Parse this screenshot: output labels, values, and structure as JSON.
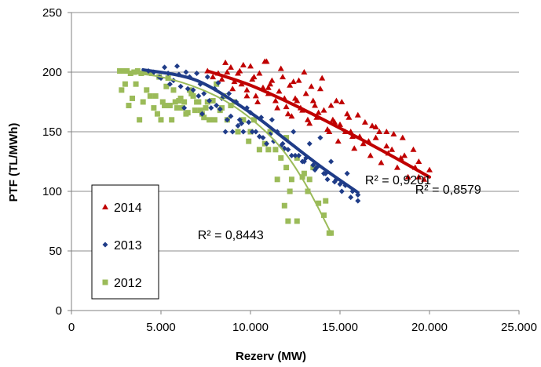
{
  "chart_data": {
    "type": "scatter",
    "xlabel": "Rezerv (MW)",
    "ylabel": "PTF (TL/MWh)",
    "xlim": [
      0,
      25000
    ],
    "ylim": [
      0,
      250
    ],
    "x_ticks": [
      0,
      5000,
      10000,
      15000,
      20000,
      25000
    ],
    "x_tick_labels": [
      "0",
      "5.000",
      "10.000",
      "15.000",
      "20.000",
      "25.000"
    ],
    "y_ticks": [
      0,
      50,
      100,
      150,
      200,
      250
    ],
    "y_tick_labels": [
      "0",
      "50",
      "100",
      "150",
      "200",
      "250"
    ],
    "grid": "horizontal",
    "legend_placement": "bottom-left",
    "series": [
      {
        "name": "2014",
        "color": "#c00000",
        "marker": "triangle",
        "x": [
          7600,
          7900,
          8200,
          8400,
          8700,
          8900,
          9100,
          9300,
          9500,
          9600,
          9800,
          10000,
          10100,
          10300,
          10500,
          10700,
          10900,
          11000,
          11200,
          11400,
          11600,
          11800,
          12000,
          12200,
          12300,
          12500,
          12700,
          12900,
          13100,
          13300,
          13500,
          13700,
          13900,
          14100,
          14300,
          14500,
          14700,
          14900,
          15100,
          15300,
          15500,
          15800,
          16100,
          16400,
          16700,
          17000,
          17300,
          17600,
          17900,
          18200,
          18500,
          18800,
          19100,
          19400,
          19700,
          20000,
          9000,
          9800,
          10400,
          11000,
          11500,
          12100,
          12600,
          13200,
          13800,
          14400,
          15000,
          15700,
          16300,
          17000,
          17700,
          18400,
          19200,
          10200,
          11100,
          11900,
          12800,
          13600,
          14600,
          15600,
          16600,
          17600,
          18600,
          8600,
          9400,
          10800,
          12400,
          13000,
          14000,
          15400,
          16800,
          18000,
          19400,
          11700,
          13400,
          14800,
          16000,
          17200
        ],
        "y": [
          201,
          196,
          199,
          194,
          200,
          204,
          192,
          199,
          190,
          206,
          185,
          205,
          194,
          180,
          199,
          187,
          209,
          182,
          193,
          176,
          184,
          196,
          171,
          189,
          163,
          178,
          193,
          168,
          182,
          157,
          176,
          162,
          186,
          168,
          152,
          172,
          158,
          142,
          175,
          150,
          162,
          136,
          146,
          158,
          130,
          154,
          124,
          150,
          135,
          120,
          145,
          112,
          135,
          125,
          110,
          118,
          186,
          180,
          175,
          187,
          170,
          165,
          176,
          160,
          166,
          150,
          156,
          146,
          140,
          145,
          132,
          128,
          120,
          196,
          190,
          178,
          170,
          172,
          160,
          150,
          142,
          138,
          130,
          208,
          201,
          209,
          192,
          200,
          195,
          165,
          155,
          148,
          112,
          203,
          188,
          176,
          164,
          150
        ]
      },
      {
        "name": "2013",
        "color": "#1f3c88",
        "marker": "diamond",
        "x": [
          4300,
          4600,
          4900,
          5200,
          5400,
          5700,
          5900,
          6100,
          6400,
          6600,
          6800,
          7000,
          7200,
          7400,
          7600,
          7800,
          8000,
          8200,
          8400,
          8600,
          8800,
          9000,
          9200,
          9400,
          9600,
          9800,
          10000,
          10300,
          10600,
          10900,
          11200,
          11500,
          11800,
          12100,
          12400,
          12700,
          13000,
          13300,
          13600,
          13900,
          14200,
          14500,
          14800,
          15100,
          15400,
          15700,
          16000,
          5000,
          5500,
          6000,
          6500,
          7100,
          7700,
          8300,
          8900,
          9500,
          10100,
          10700,
          11300,
          11900,
          12500,
          13100,
          13700,
          14300,
          15000,
          15600,
          16000,
          6300,
          7300,
          8100,
          8700,
          9300,
          9900,
          10500,
          11100,
          11700,
          12300,
          12900,
          13500,
          14100,
          14700,
          15300
        ],
        "y": [
          201,
          200,
          196,
          204,
          199,
          193,
          205,
          188,
          200,
          196,
          185,
          199,
          190,
          182,
          196,
          170,
          186,
          191,
          178,
          150,
          182,
          150,
          175,
          160,
          150,
          170,
          166,
          150,
          162,
          140,
          160,
          150,
          140,
          135,
          150,
          130,
          125,
          140,
          118,
          145,
          115,
          125,
          110,
          100,
          115,
          100,
          92,
          195,
          190,
          198,
          186,
          180,
          176,
          169,
          163,
          157,
          150,
          145,
          142,
          136,
          130,
          128,
          120,
          110,
          106,
          95,
          97,
          170,
          165,
          172,
          160,
          155,
          158,
          146,
          148,
          138,
          130,
          125,
          122,
          115,
          108,
          105
        ]
      },
      {
        "name": "2012",
        "color": "#9bbb59",
        "marker": "square",
        "x": [
          2700,
          2900,
          3100,
          3300,
          3500,
          3700,
          3900,
          4100,
          4300,
          4500,
          4700,
          4900,
          5100,
          5300,
          5500,
          5700,
          5900,
          6100,
          6300,
          6500,
          6700,
          6900,
          7100,
          7300,
          7500,
          7700,
          7900,
          8100,
          8300,
          8500,
          8700,
          8900,
          9100,
          9300,
          9600,
          9900,
          10200,
          10500,
          10800,
          11100,
          11400,
          11700,
          12000,
          12300,
          12600,
          12900,
          13200,
          13500,
          13800,
          14100,
          14400,
          2800,
          3200,
          3600,
          4000,
          4400,
          4800,
          5200,
          5600,
          6000,
          6400,
          6800,
          7200,
          7600,
          8000,
          8400,
          3000,
          3400,
          3800,
          4200,
          4600,
          5000,
          5400,
          5800,
          6200,
          6600,
          7000,
          7400,
          10000,
          11000,
          12000,
          13000,
          11500,
          12200,
          12600,
          13300,
          14200,
          14500,
          11900,
          12100
        ],
        "y": [
          201,
          201,
          201,
          199,
          200,
          201,
          199,
          200,
          200,
          199,
          180,
          196,
          175,
          188,
          172,
          185,
          170,
          178,
          175,
          166,
          182,
          168,
          175,
          165,
          170,
          160,
          176,
          190,
          168,
          180,
          160,
          172,
          175,
          150,
          160,
          142,
          160,
          135,
          140,
          150,
          135,
          128,
          120,
          110,
          128,
          112,
          100,
          120,
          90,
          80,
          65,
          185,
          172,
          190,
          175,
          180,
          165,
          172,
          160,
          176,
          165,
          180,
          168,
          175,
          160,
          170,
          190,
          178,
          160,
          185,
          170,
          160,
          195,
          175,
          170,
          185,
          175,
          162,
          150,
          135,
          145,
          115,
          110,
          100,
          75,
          110,
          92,
          65,
          88,
          75
        ]
      }
    ],
    "trendlines": [
      {
        "name": "2014",
        "color": "#c00000",
        "x_range": [
          7600,
          20000
        ],
        "x_points": [
          7600,
          10000,
          12500,
          15000,
          17500,
          20000
        ],
        "y_points": [
          201,
          189,
          172,
          153,
          133,
          112
        ],
        "width": 4
      },
      {
        "name": "2013",
        "color": "#1f3c88",
        "x_range": [
          4000,
          16000
        ],
        "x_points": [
          4000,
          7000,
          10000,
          12000,
          14000,
          16000
        ],
        "y_points": [
          202,
          193,
          166,
          143,
          120,
          99
        ],
        "width": 4
      },
      {
        "name": "2012",
        "color": "#9bbb59",
        "x_range": [
          2700,
          14500
        ],
        "x_points": [
          2700,
          5000,
          7500,
          9500,
          11500,
          13000,
          14500
        ],
        "y_points": [
          200,
          196,
          184,
          167,
          140,
          108,
          65
        ],
        "width": 2
      }
    ],
    "r2_labels": [
      {
        "series": "2014",
        "text": "R² = 0,8579",
        "x": 19200,
        "y": 98
      },
      {
        "series": "2013",
        "text": "R² = 0,9201",
        "x": 16400,
        "y": 106
      },
      {
        "series": "2012",
        "text": "R² = 0,8443",
        "x": 7050,
        "y": 60
      }
    ]
  }
}
